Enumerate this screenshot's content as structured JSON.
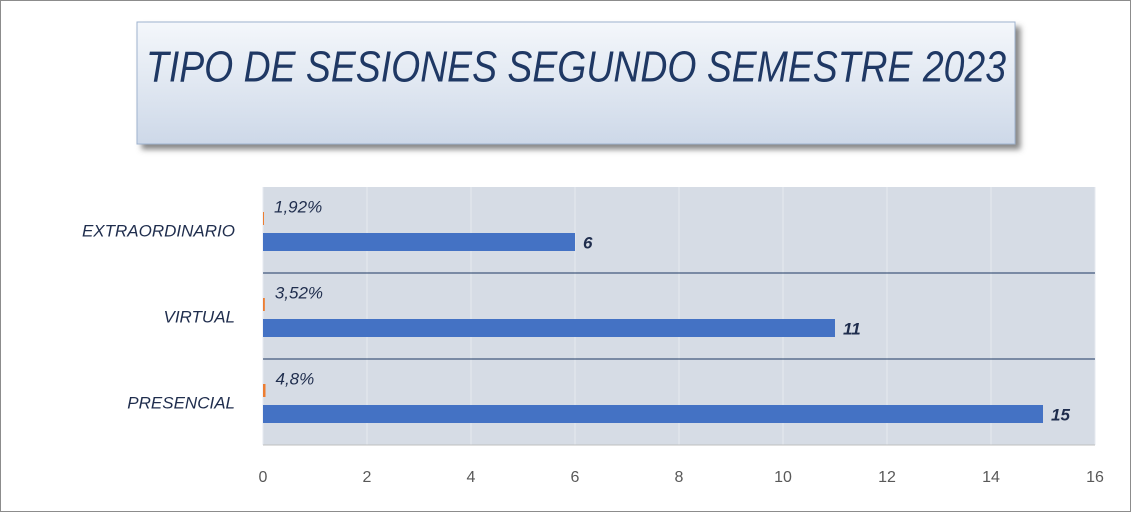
{
  "chart_data": {
    "type": "bar",
    "orientation": "horizontal",
    "title": "TIPO DE SESIONES SEGUNDO SEMESTRE 2023",
    "categories": [
      "EXTRAORDINARIO",
      "VIRTUAL",
      "PRESENCIAL"
    ],
    "series": [
      {
        "color": "#ed7d31",
        "values": [
          0.0192,
          0.0352,
          0.048
        ],
        "value_labels": [
          "1,92%",
          "3,52%",
          "4,8%"
        ]
      },
      {
        "color": "#4472c4",
        "values": [
          6,
          11,
          15
        ]
      }
    ],
    "xlim": [
      0,
      16
    ],
    "xticks": [
      0,
      2,
      4,
      6,
      8,
      10,
      12,
      14,
      16
    ],
    "grid": true
  }
}
